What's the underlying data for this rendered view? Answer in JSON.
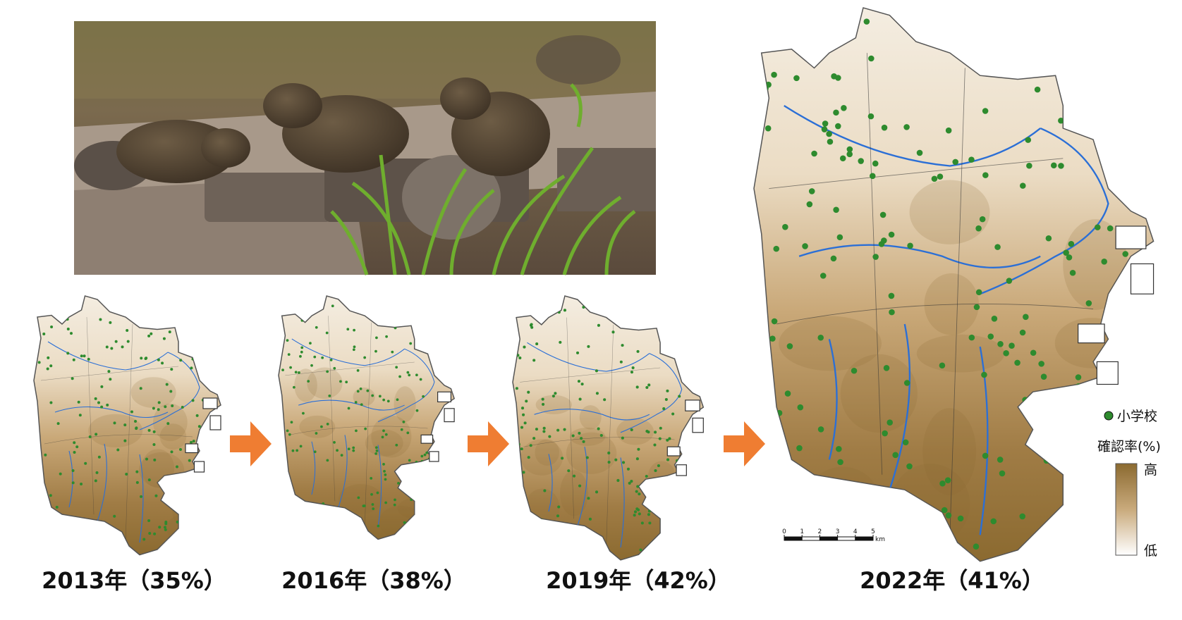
{
  "maps": [
    {
      "caption": "2013年（35%）"
    },
    {
      "caption": "2016年（38%）"
    },
    {
      "caption": "2019年（42%）"
    },
    {
      "caption": "2022年（41%）"
    }
  ],
  "legend": {
    "school": "小学校",
    "rate_title": "確認率(%)",
    "high": "高",
    "low": "低"
  },
  "scale_bar": {
    "ticks": [
      0,
      1,
      2,
      3,
      4,
      5
    ],
    "unit": "km"
  }
}
